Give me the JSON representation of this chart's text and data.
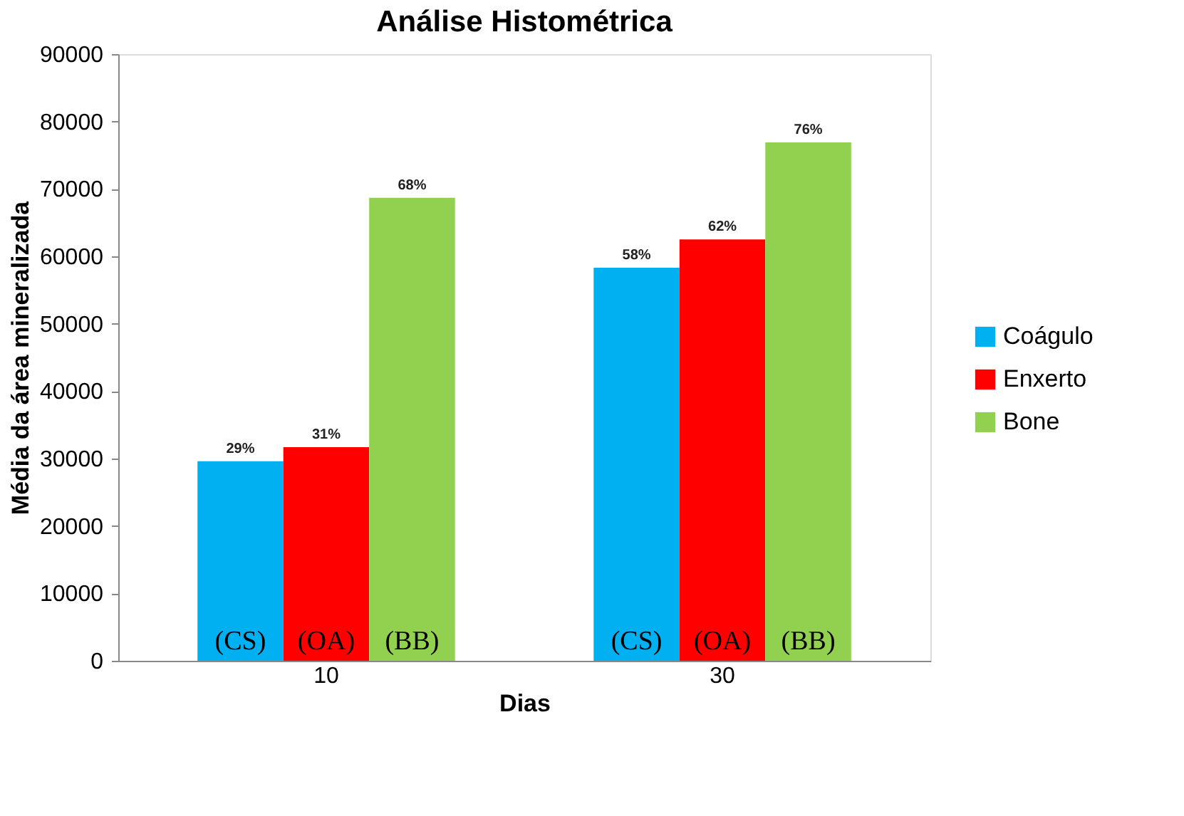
{
  "chart_data": {
    "type": "bar",
    "title": "Análise Histométrica",
    "xlabel": "Dias",
    "ylabel": "Média da área mineralizada",
    "categories": [
      "10",
      "30"
    ],
    "series": [
      {
        "name": "Coágulo",
        "color": "#00b0f0",
        "values": [
          29600,
          58300
        ]
      },
      {
        "name": "Enxerto",
        "color": "#ff0000",
        "values": [
          31700,
          62500
        ]
      },
      {
        "name": "Bone",
        "color": "#92d050",
        "values": [
          68700,
          76900
        ]
      }
    ],
    "ylim": [
      0,
      90000
    ],
    "yticks": [
      0,
      10000,
      20000,
      30000,
      40000,
      50000,
      60000,
      70000,
      80000,
      90000
    ],
    "grid": false,
    "legend": "right",
    "annotations": [
      "29%",
      "31%",
      "68%",
      "58%",
      "62%",
      "76%",
      "(CS)",
      "(OA)",
      "(BB)",
      "(CS)",
      "(OA)",
      "(BB)"
    ]
  }
}
